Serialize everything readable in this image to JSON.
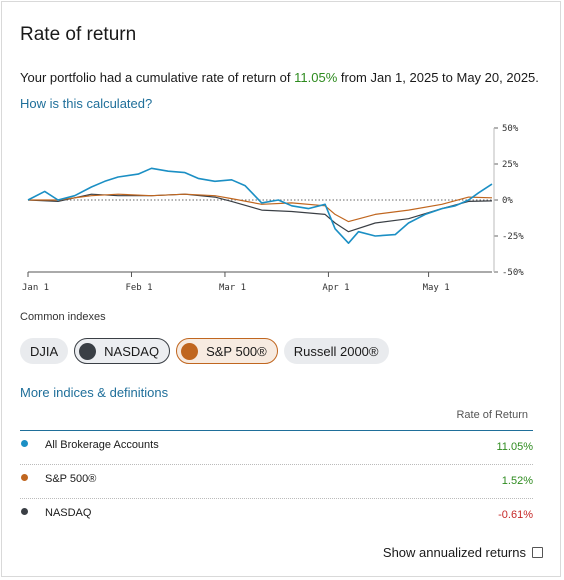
{
  "header": {
    "title": "Rate of return",
    "summary_prefix": "Your portfolio had a cumulative rate of return of ",
    "summary_value": "11.05%",
    "summary_suffix": " from Jan 1, 2025 to May 20, 2025.",
    "how_link": "How is this calculated?"
  },
  "chart_data": {
    "type": "line",
    "x_ticks": [
      "Jan 1",
      "Feb 1",
      "Mar 1",
      "Apr 1",
      "May 1"
    ],
    "y_ticks": [
      "50%",
      "25%",
      "0%",
      "-25%",
      "-50%"
    ],
    "ylim": [
      -50,
      50
    ],
    "xlim": [
      "2025-01-01",
      "2025-05-20"
    ],
    "series": [
      {
        "name": "All Brokerage Accounts",
        "color": "#1b8fc4",
        "x": [
          "2025-01-01",
          "2025-01-06",
          "2025-01-10",
          "2025-01-15",
          "2025-01-20",
          "2025-01-24",
          "2025-01-28",
          "2025-02-03",
          "2025-02-07",
          "2025-02-12",
          "2025-02-17",
          "2025-02-21",
          "2025-02-26",
          "2025-03-03",
          "2025-03-07",
          "2025-03-12",
          "2025-03-17",
          "2025-03-21",
          "2025-03-26",
          "2025-03-31",
          "2025-04-03",
          "2025-04-07",
          "2025-04-10",
          "2025-04-15",
          "2025-04-21",
          "2025-04-25",
          "2025-04-30",
          "2025-05-05",
          "2025-05-09",
          "2025-05-13",
          "2025-05-16",
          "2025-05-20"
        ],
        "y": [
          0,
          6,
          0,
          3,
          9,
          13,
          16,
          18,
          22,
          20,
          19,
          15,
          13,
          14,
          10,
          -2,
          0,
          -4,
          -6,
          -3,
          -20,
          -30,
          -22,
          -25,
          -24,
          -16,
          -10,
          -6,
          -4,
          0,
          5,
          11.05
        ]
      },
      {
        "name": "S&P 500®",
        "color": "#c0661f",
        "x": [
          "2025-01-01",
          "2025-01-10",
          "2025-01-20",
          "2025-01-28",
          "2025-02-07",
          "2025-02-17",
          "2025-02-26",
          "2025-03-03",
          "2025-03-12",
          "2025-03-21",
          "2025-03-31",
          "2025-04-03",
          "2025-04-07",
          "2025-04-15",
          "2025-04-25",
          "2025-05-05",
          "2025-05-13",
          "2025-05-20"
        ],
        "y": [
          0,
          0,
          3,
          4,
          3,
          4,
          3,
          1,
          -3,
          -2,
          -4,
          -10,
          -15,
          -10,
          -7,
          -3,
          2,
          1.52
        ]
      },
      {
        "name": "NASDAQ",
        "color": "#3a3f45",
        "x": [
          "2025-01-01",
          "2025-01-10",
          "2025-01-20",
          "2025-01-28",
          "2025-02-07",
          "2025-02-17",
          "2025-02-26",
          "2025-03-03",
          "2025-03-12",
          "2025-03-21",
          "2025-03-31",
          "2025-04-03",
          "2025-04-07",
          "2025-04-15",
          "2025-04-25",
          "2025-05-05",
          "2025-05-13",
          "2025-05-20"
        ],
        "y": [
          0,
          -1,
          4,
          3,
          3,
          4,
          2,
          -1,
          -7,
          -8,
          -10,
          -16,
          -22,
          -16,
          -13,
          -6,
          -1,
          -0.61
        ]
      }
    ]
  },
  "indexes": {
    "label": "Common indexes",
    "items": [
      {
        "label": "DJIA",
        "selected": false
      },
      {
        "label": "NASDAQ",
        "selected": true,
        "color": "#3a3f45"
      },
      {
        "label": "S&P 500®",
        "selected": true,
        "color": "#c0661f"
      },
      {
        "label": "Russell 2000®",
        "selected": false
      }
    ],
    "more_link": "More indices & definitions"
  },
  "table": {
    "header": "Rate of Return",
    "rows": [
      {
        "name": "All Brokerage Accounts",
        "value": "11.05%",
        "color": "#1b8fc4"
      },
      {
        "name": "S&P 500®",
        "value": "1.52%",
        "color": "#c0661f"
      },
      {
        "name": "NASDAQ",
        "value": "-0.61%",
        "color": "#3a3f45"
      }
    ]
  },
  "footer": {
    "annualized_label": "Show annualized returns",
    "checked": false
  }
}
